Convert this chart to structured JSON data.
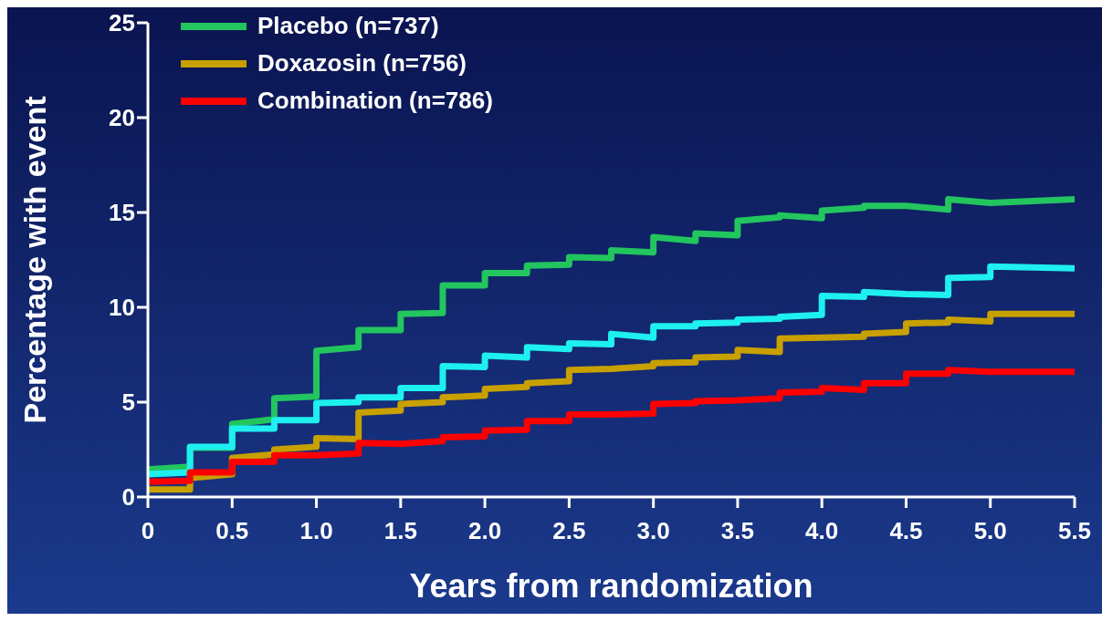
{
  "chart_data": {
    "type": "line",
    "xlabel": "Years from randomization",
    "ylabel": "Percentage with event",
    "xlim": [
      0,
      5.5
    ],
    "xticks": [
      0,
      0.5,
      {
        "value": 1,
        "label": "1.0"
      },
      1.5,
      {
        "value": 2,
        "label": "2.0"
      },
      2.5,
      {
        "value": 3,
        "label": "3.0"
      },
      3.5,
      {
        "value": 4,
        "label": "4.0"
      },
      4.5,
      {
        "value": 5,
        "label": "5.0"
      },
      5.5
    ],
    "ylim": [
      0,
      25
    ],
    "yticks": [
      0,
      5,
      10,
      15,
      20,
      25
    ],
    "grid": false,
    "legend": "top left",
    "marker": "none",
    "line_style": "solid",
    "series": [
      {
        "name": "Placebo (n=737)",
        "color": "#22c55e",
        "x": [
          0,
          0.25,
          0.25,
          0.5,
          0.5,
          0.75,
          0.75,
          1,
          1,
          1.25,
          1.25,
          1.5,
          1.5,
          1.75,
          1.75,
          2,
          2,
          2.25,
          2.25,
          2.5,
          2.5,
          2.75,
          2.75,
          3,
          3,
          3.25,
          3.25,
          3.5,
          3.5,
          3.75,
          3.75,
          4,
          4,
          4.25,
          4.25,
          4.5,
          4.75,
          4.75,
          5,
          5.5
        ],
        "values": [
          1.45,
          1.6,
          2.6,
          2.6,
          3.85,
          4.1,
          5.2,
          5.3,
          7.7,
          7.9,
          8.8,
          8.8,
          9.65,
          9.7,
          11.15,
          11.15,
          11.8,
          11.8,
          12.2,
          12.25,
          12.65,
          12.6,
          13,
          12.9,
          13.7,
          13.5,
          13.9,
          13.8,
          14.55,
          14.75,
          14.85,
          14.7,
          15.1,
          15.25,
          15.35,
          15.35,
          15.15,
          15.7,
          15.5,
          15.7
        ]
      },
      {
        "color": "#1ef0f0",
        "x": [
          0,
          0.25,
          0.25,
          0.5,
          0.5,
          0.75,
          0.75,
          1,
          1,
          1.25,
          1.25,
          1.5,
          1.5,
          1.75,
          1.75,
          2,
          2,
          2.25,
          2.25,
          2.5,
          2.5,
          2.75,
          2.75,
          3,
          3,
          3.25,
          3.25,
          3.5,
          3.5,
          3.75,
          3.75,
          4,
          4,
          4.25,
          4.25,
          4.5,
          4.75,
          4.75,
          5,
          5,
          5.5
        ],
        "values": [
          1.2,
          1.3,
          2.65,
          2.65,
          3.6,
          3.6,
          4.05,
          4.05,
          4.95,
          5,
          5.25,
          5.25,
          5.75,
          5.75,
          6.9,
          6.85,
          7.45,
          7.35,
          7.9,
          7.8,
          8.1,
          8.05,
          8.6,
          8.4,
          9,
          9,
          9.15,
          9.2,
          9.35,
          9.4,
          9.5,
          9.6,
          10.6,
          10.55,
          10.8,
          10.7,
          10.65,
          11.55,
          11.6,
          12.15,
          12.05
        ]
      },
      {
        "name": "Doxazosin (n=756)",
        "color": "#c8a000",
        "x": [
          0,
          0.25,
          0.25,
          0.5,
          0.5,
          0.75,
          0.75,
          1,
          1,
          1.25,
          1.25,
          1.5,
          1.5,
          1.75,
          1.75,
          2,
          2,
          2.25,
          2.25,
          2.5,
          2.5,
          2.75,
          3,
          3,
          3.25,
          3.25,
          3.5,
          3.5,
          3.75,
          3.75,
          4,
          4.25,
          4.25,
          4.5,
          4.5,
          4.75,
          4.75,
          5,
          5,
          5.5
        ],
        "values": [
          0.4,
          0.4,
          1,
          1.2,
          2.05,
          2.25,
          2.5,
          2.65,
          3.1,
          3.05,
          4.45,
          4.55,
          4.9,
          5,
          5.25,
          5.35,
          5.7,
          5.8,
          6,
          6.1,
          6.7,
          6.75,
          6.9,
          7.05,
          7.1,
          7.35,
          7.4,
          7.75,
          7.65,
          8.35,
          8.4,
          8.45,
          8.6,
          8.7,
          9.15,
          9.2,
          9.35,
          9.25,
          9.65,
          9.65
        ]
      },
      {
        "name": "Combination (n=786)",
        "color": "#ff0000",
        "x": [
          0,
          0.25,
          0.25,
          0.5,
          0.5,
          0.75,
          0.75,
          1,
          1.25,
          1.25,
          1.5,
          1.75,
          1.75,
          2,
          2,
          2.25,
          2.25,
          2.5,
          2.5,
          2.75,
          3,
          3,
          3.25,
          3.25,
          3.5,
          3.75,
          3.75,
          4,
          4,
          4.25,
          4.25,
          4.5,
          4.5,
          4.75,
          4.75,
          5,
          5.5
        ],
        "values": [
          0.8,
          0.85,
          1.3,
          1.3,
          1.85,
          1.85,
          2.2,
          2.2,
          2.3,
          2.85,
          2.8,
          2.95,
          3.15,
          3.2,
          3.5,
          3.55,
          4,
          4,
          4.35,
          4.35,
          4.4,
          4.9,
          4.95,
          5.05,
          5.1,
          5.2,
          5.5,
          5.55,
          5.75,
          5.65,
          6,
          6,
          6.5,
          6.5,
          6.7,
          6.6,
          6.6
        ]
      }
    ]
  }
}
